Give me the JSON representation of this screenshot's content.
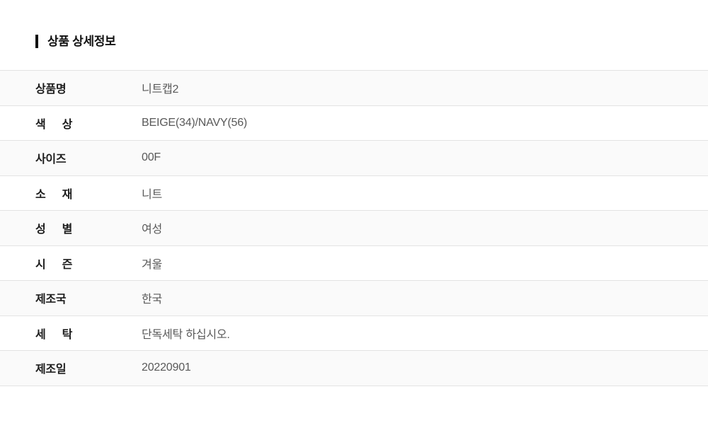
{
  "header": {
    "title": "상품 상세정보"
  },
  "colors": {
    "title": "#111111",
    "label": "#1c1c1c",
    "value": "#595959",
    "border": "#e3e3e3",
    "alt_row_bg": "#fafafa",
    "page_bg": "#ffffff"
  },
  "table": {
    "rows": [
      {
        "label": "상품명",
        "value": "니트캡2"
      },
      {
        "label": "색 상",
        "value": "BEIGE(34)/NAVY(56)"
      },
      {
        "label": "사이즈",
        "value": "00F"
      },
      {
        "label": "소 재",
        "value": "니트"
      },
      {
        "label": "성 별",
        "value": "여성"
      },
      {
        "label": "시 즌",
        "value": "겨울"
      },
      {
        "label": "제조국",
        "value": "한국"
      },
      {
        "label": "세 탁",
        "value": "단독세탁 하십시오."
      },
      {
        "label": "제조일",
        "value": "20220901"
      }
    ]
  }
}
